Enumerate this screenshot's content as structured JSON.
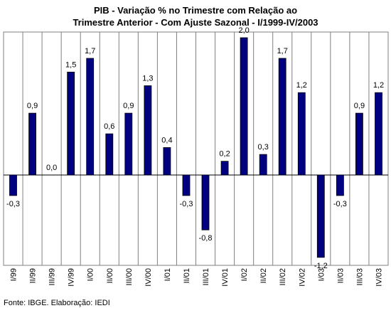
{
  "chart_data": {
    "type": "bar",
    "title_line1": "PIB - Variação % no Trimestre com Relação ao",
    "title_line2": "Trimestre Anterior - Com Ajuste Sazonal - I/1999-IV/2003",
    "categories": [
      "I/99",
      "II/99",
      "III/99",
      "IV/99",
      "I/00",
      "II/00",
      "III/00",
      "IV/00",
      "I/01",
      "II/01",
      "III/01",
      "IV/01",
      "I/02",
      "II/02",
      "III/02",
      "IV/02",
      "I/03",
      "II/03",
      "III/03",
      "IV/03"
    ],
    "values": [
      -0.3,
      0.9,
      0.0,
      1.5,
      1.7,
      0.6,
      0.9,
      1.3,
      0.4,
      -0.3,
      -0.8,
      0.2,
      2.0,
      0.3,
      1.7,
      1.2,
      -1.2,
      -0.3,
      0.9,
      1.2
    ],
    "labels": [
      "-0,3",
      "0,9",
      "0,0",
      "1,5",
      "1,7",
      "0,6",
      "0,9",
      "1,3",
      "0,4",
      "-0,3",
      "-0,8",
      "0,2",
      "2,0",
      "0,3",
      "1,7",
      "1,2",
      "-1,2",
      "-0,3",
      "0,9",
      "1,2"
    ],
    "ylim": [
      -1.35,
      2.35
    ],
    "bar_color": "#000080",
    "grid": true,
    "grid_color": "#808080"
  },
  "source": "Fonte: IBGE. Elaboração: IEDI"
}
